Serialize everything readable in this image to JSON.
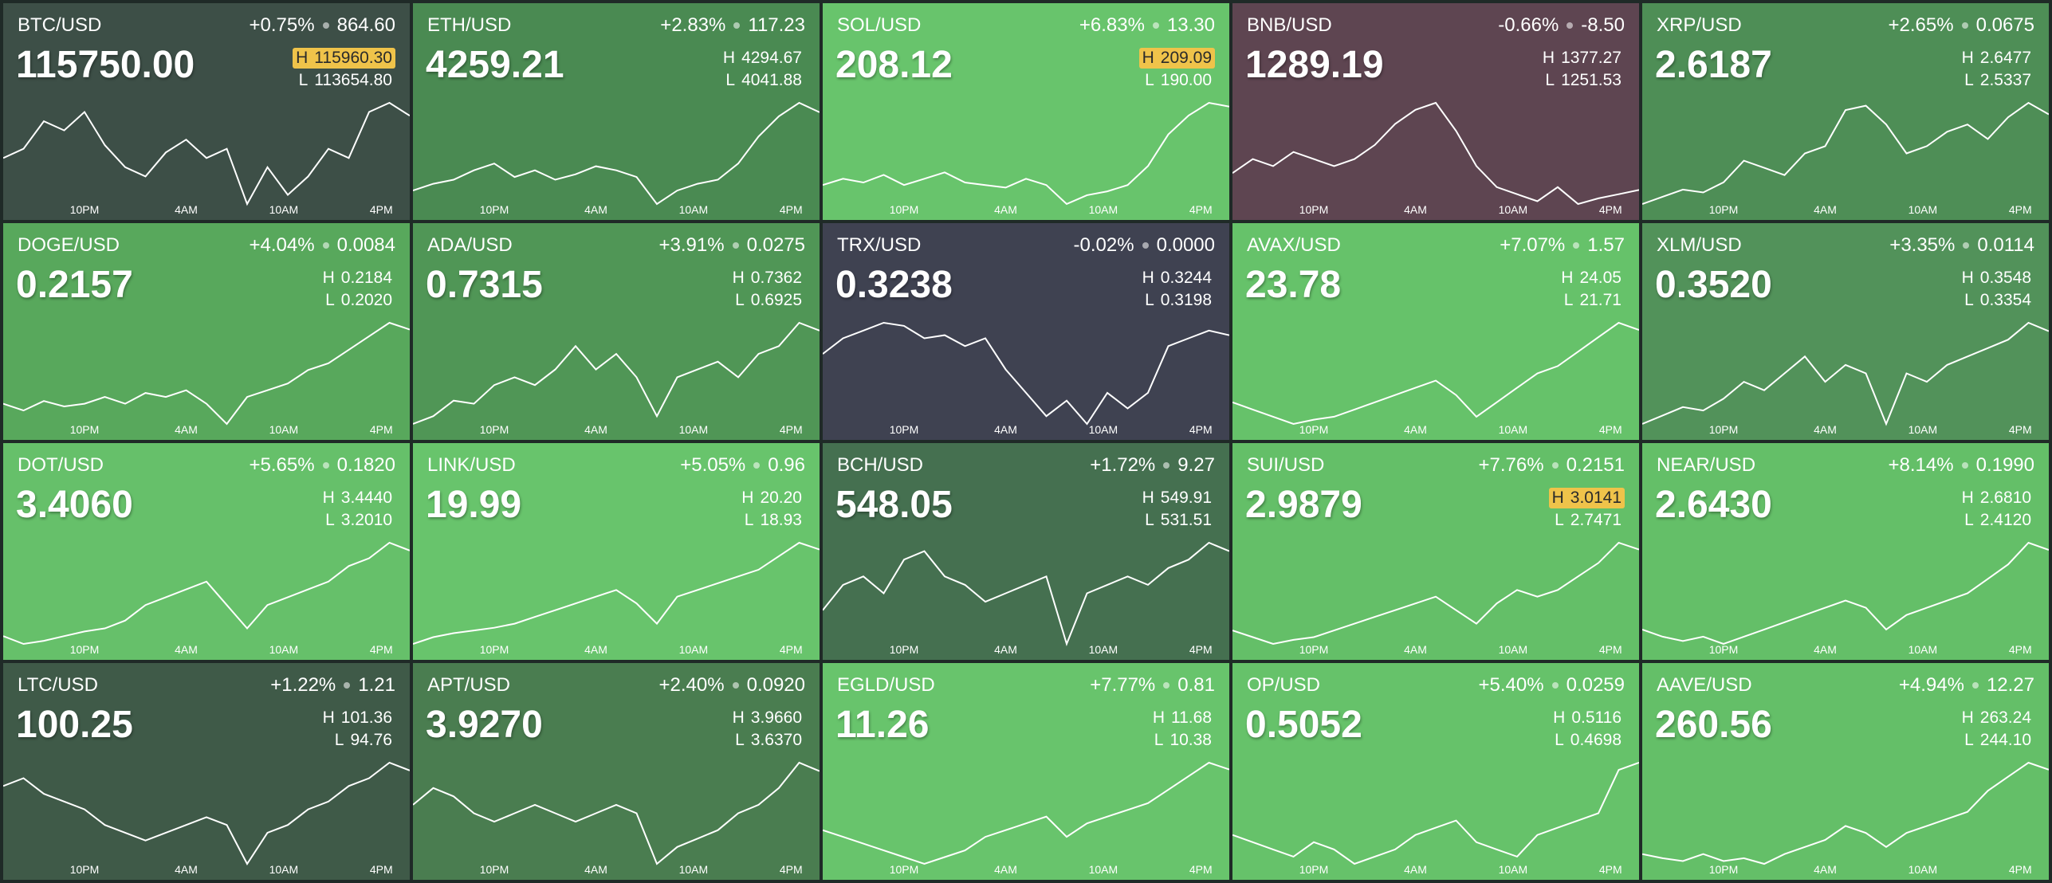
{
  "high_label": "H",
  "low_label": "L",
  "time_labels": [
    "10PM",
    "4AM",
    "10AM",
    "4PM"
  ],
  "tiles": [
    {
      "symbol": "BTC/USD",
      "change_pct": "+0.75%",
      "change": "864.60",
      "price": "115750.00",
      "high": "115960.30",
      "low": "113654.80",
      "highlight": "high",
      "color": "#3d4f47",
      "sparkline": [
        55,
        60,
        75,
        70,
        80,
        62,
        50,
        45,
        58,
        65,
        55,
        60,
        30,
        50,
        35,
        45,
        60,
        55,
        80,
        85,
        78
      ]
    },
    {
      "symbol": "ETH/USD",
      "change_pct": "+2.83%",
      "change": "117.23",
      "price": "4259.21",
      "high": "4294.67",
      "low": "4041.88",
      "color": "#4a8a52",
      "sparkline": [
        30,
        35,
        38,
        45,
        50,
        40,
        45,
        38,
        42,
        48,
        45,
        40,
        20,
        30,
        35,
        38,
        50,
        70,
        85,
        95,
        88
      ]
    },
    {
      "symbol": "SOL/USD",
      "change_pct": "+6.83%",
      "change": "13.30",
      "price": "208.12",
      "high": "209.09",
      "low": "190.00",
      "highlight": "high",
      "color": "#68c46c",
      "sparkline": [
        30,
        35,
        32,
        38,
        30,
        35,
        40,
        32,
        30,
        28,
        35,
        30,
        15,
        22,
        25,
        30,
        45,
        70,
        85,
        95,
        92
      ]
    },
    {
      "symbol": "BNB/USD",
      "change_pct": "-0.66%",
      "change": "-8.50",
      "price": "1289.19",
      "high": "1377.27",
      "low": "1251.53",
      "color": "#5e4551",
      "sparkline": [
        40,
        50,
        45,
        55,
        50,
        45,
        50,
        60,
        75,
        85,
        90,
        70,
        45,
        30,
        25,
        20,
        30,
        18,
        22,
        25,
        28
      ]
    },
    {
      "symbol": "XRP/USD",
      "change_pct": "+2.65%",
      "change": "0.0675",
      "price": "2.6187",
      "high": "2.6477",
      "low": "2.5337",
      "color": "#4e8e56",
      "sparkline": [
        20,
        25,
        30,
        28,
        35,
        50,
        45,
        40,
        55,
        60,
        85,
        88,
        75,
        55,
        60,
        70,
        75,
        65,
        80,
        90,
        82
      ]
    },
    {
      "symbol": "DOGE/USD",
      "change_pct": "+4.04%",
      "change": "0.0084",
      "price": "0.2157",
      "high": "0.2184",
      "low": "0.2020",
      "color": "#58a85c",
      "sparkline": [
        30,
        25,
        32,
        28,
        30,
        35,
        30,
        38,
        35,
        40,
        30,
        15,
        35,
        40,
        45,
        55,
        60,
        70,
        80,
        90,
        85
      ]
    },
    {
      "symbol": "ADA/USD",
      "change_pct": "+3.91%",
      "change": "0.0275",
      "price": "0.7315",
      "high": "0.7362",
      "low": "0.6925",
      "color": "#509656",
      "sparkline": [
        25,
        30,
        40,
        38,
        50,
        55,
        50,
        60,
        75,
        60,
        70,
        55,
        30,
        55,
        60,
        65,
        55,
        70,
        75,
        90,
        85
      ]
    },
    {
      "symbol": "TRX/USD",
      "change_pct": "-0.02%",
      "change": "0.0000",
      "price": "0.3238",
      "high": "0.3244",
      "low": "0.3198",
      "color": "#3f4251",
      "sparkline": [
        70,
        80,
        85,
        90,
        88,
        80,
        82,
        75,
        80,
        60,
        45,
        30,
        40,
        25,
        45,
        35,
        45,
        75,
        80,
        85,
        82
      ]
    },
    {
      "symbol": "AVAX/USD",
      "change_pct": "+7.07%",
      "change": "1.57",
      "price": "23.78",
      "high": "24.05",
      "low": "21.71",
      "color": "#66c26a",
      "sparkline": [
        40,
        35,
        30,
        25,
        28,
        30,
        35,
        40,
        45,
        50,
        55,
        45,
        30,
        40,
        50,
        60,
        65,
        75,
        85,
        95,
        90
      ]
    },
    {
      "symbol": "XLM/USD",
      "change_pct": "+3.35%",
      "change": "0.0114",
      "price": "0.3520",
      "high": "0.3548",
      "low": "0.3354",
      "color": "#52925a",
      "sparkline": [
        30,
        35,
        40,
        38,
        45,
        55,
        50,
        60,
        70,
        55,
        65,
        60,
        30,
        60,
        55,
        65,
        70,
        75,
        80,
        90,
        85
      ]
    },
    {
      "symbol": "DOT/USD",
      "change_pct": "+5.65%",
      "change": "0.1820",
      "price": "3.4060",
      "high": "3.4440",
      "low": "3.2010",
      "color": "#66c06a",
      "sparkline": [
        25,
        20,
        22,
        25,
        28,
        30,
        35,
        45,
        50,
        55,
        60,
        45,
        30,
        45,
        50,
        55,
        60,
        70,
        75,
        85,
        80
      ]
    },
    {
      "symbol": "LINK/USD",
      "change_pct": "+5.05%",
      "change": "0.96",
      "price": "19.99",
      "high": "20.20",
      "low": "18.93",
      "color": "#68c46c",
      "sparkline": [
        10,
        15,
        18,
        20,
        22,
        25,
        30,
        35,
        40,
        45,
        50,
        40,
        25,
        45,
        50,
        55,
        60,
        65,
        75,
        85,
        80
      ]
    },
    {
      "symbol": "BCH/USD",
      "change_pct": "+1.72%",
      "change": "9.27",
      "price": "548.05",
      "high": "549.91",
      "low": "531.51",
      "color": "#457050",
      "sparkline": [
        40,
        55,
        60,
        50,
        70,
        75,
        60,
        55,
        45,
        50,
        55,
        60,
        20,
        50,
        55,
        60,
        55,
        65,
        70,
        80,
        75
      ]
    },
    {
      "symbol": "SUI/USD",
      "change_pct": "+7.76%",
      "change": "0.2151",
      "price": "2.9879",
      "high": "3.0141",
      "low": "2.7471",
      "highlight": "high",
      "color": "#64bf68",
      "sparkline": [
        25,
        20,
        15,
        18,
        20,
        25,
        30,
        35,
        40,
        45,
        50,
        40,
        30,
        45,
        55,
        50,
        55,
        65,
        75,
        90,
        85
      ]
    },
    {
      "symbol": "NEAR/USD",
      "change_pct": "+8.14%",
      "change": "0.1990",
      "price": "2.6430",
      "high": "2.6810",
      "low": "2.4120",
      "color": "#64bf68",
      "sparkline": [
        30,
        25,
        22,
        25,
        20,
        25,
        30,
        35,
        40,
        45,
        50,
        45,
        30,
        40,
        45,
        50,
        55,
        65,
        75,
        90,
        85
      ]
    },
    {
      "symbol": "LTC/USD",
      "change_pct": "+1.22%",
      "change": "1.21",
      "price": "100.25",
      "high": "101.36",
      "low": "94.76",
      "color": "#3f5a48",
      "sparkline": [
        70,
        75,
        65,
        60,
        55,
        45,
        40,
        35,
        40,
        45,
        50,
        45,
        20,
        40,
        45,
        55,
        60,
        70,
        75,
        85,
        80
      ]
    },
    {
      "symbol": "APT/USD",
      "change_pct": "+2.40%",
      "change": "0.0920",
      "price": "3.9270",
      "high": "3.9660",
      "low": "3.6370",
      "color": "#4a7d50",
      "sparkline": [
        60,
        70,
        65,
        55,
        50,
        55,
        60,
        55,
        50,
        55,
        60,
        55,
        25,
        35,
        40,
        45,
        55,
        60,
        70,
        85,
        80
      ]
    },
    {
      "symbol": "EGLD/USD",
      "change_pct": "+7.77%",
      "change": "0.81",
      "price": "11.26",
      "high": "11.68",
      "low": "10.38",
      "color": "#68c46c",
      "sparkline": [
        35,
        30,
        25,
        20,
        15,
        10,
        15,
        20,
        30,
        35,
        40,
        45,
        30,
        40,
        45,
        50,
        55,
        65,
        75,
        85,
        80
      ]
    },
    {
      "symbol": "OP/USD",
      "change_pct": "+5.40%",
      "change": "0.0259",
      "price": "0.5052",
      "high": "0.5116",
      "low": "0.4698",
      "color": "#66c26a",
      "sparkline": [
        40,
        35,
        30,
        25,
        35,
        30,
        20,
        25,
        30,
        40,
        45,
        50,
        35,
        30,
        25,
        40,
        45,
        50,
        55,
        85,
        90
      ]
    },
    {
      "symbol": "AAVE/USD",
      "change_pct": "+4.94%",
      "change": "12.27",
      "price": "260.56",
      "high": "263.24",
      "low": "244.10",
      "color": "#64bf68",
      "sparkline": [
        25,
        22,
        20,
        25,
        20,
        22,
        18,
        25,
        30,
        35,
        45,
        40,
        30,
        40,
        45,
        50,
        55,
        70,
        80,
        90,
        85
      ]
    }
  ]
}
